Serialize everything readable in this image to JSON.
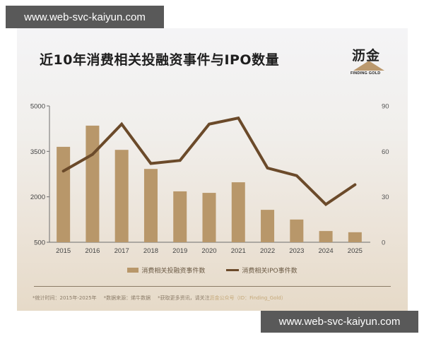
{
  "watermark": {
    "top": "www.web-svc-kaiyun.com",
    "bottom": "www.web-svc-kaiyun.com"
  },
  "header": {
    "title": "近10年消费相关投融资事件与IPO数量"
  },
  "logo": {
    "cn": "沥金",
    "en": "FINDING GOLD"
  },
  "legend": {
    "bar": "消费相关投融资事件数",
    "line": "消费相关IPO事件数"
  },
  "footnote": {
    "period": "*统计时间：2015年-2025年",
    "source": "*数据来源：烯牛数据",
    "more_prefix": "*获取更多资讯，请关注",
    "more_account": "沥金公众号（ID：Finding_Gold）"
  },
  "colors": {
    "bar": "#b8976a",
    "line": "#6b4a2a",
    "axis": "#6e6e6e"
  },
  "chart_data": {
    "type": "bar",
    "title": "近10年消费相关投融资事件与IPO数量",
    "categories": [
      "2015",
      "2016",
      "2017",
      "2018",
      "2019",
      "2020",
      "2021",
      "2022",
      "2023",
      "2024",
      "2025"
    ],
    "series": [
      {
        "name": "消费相关投融资事件数",
        "type": "bar",
        "axis": "left",
        "values": [
          3650,
          4350,
          3550,
          2920,
          2180,
          2130,
          2480,
          1570,
          1250,
          870,
          830
        ]
      },
      {
        "name": "消费相关IPO事件数",
        "type": "line",
        "axis": "right",
        "values": [
          47,
          58,
          78,
          52,
          54,
          78,
          82,
          49,
          44,
          25,
          38
        ]
      }
    ],
    "left_axis": {
      "ticks": [
        "5000",
        "3500",
        "2000",
        "500"
      ],
      "ylim": [
        500,
        5000
      ]
    },
    "right_axis": {
      "ticks": [
        "90",
        "60",
        "30",
        "0"
      ],
      "ylim": [
        0,
        90
      ]
    },
    "xlabel": "",
    "ylabel": "",
    "grid": false,
    "legend_position": "bottom"
  }
}
